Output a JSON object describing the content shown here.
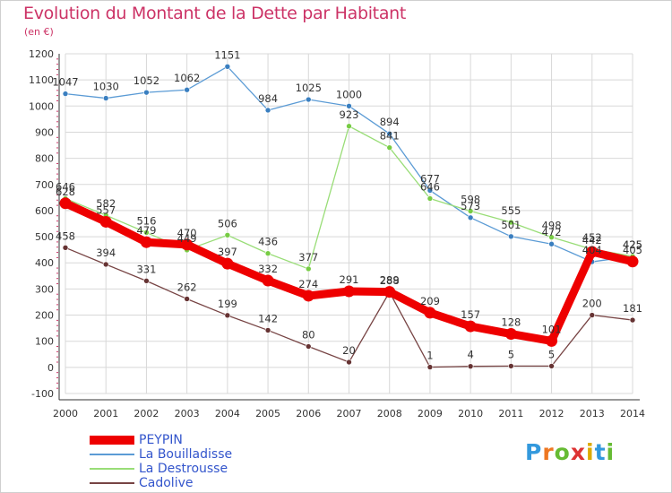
{
  "title": "Evolution du Montant de la Dette par Habitant",
  "subtitle": "(en €)",
  "logo": "Proxiti",
  "colors": {
    "title": "#cc3366",
    "grid": "#d8d8d8",
    "axis": "#333333",
    "legend_text": "#3355cc"
  },
  "chart_data": {
    "type": "line",
    "title": "Evolution du Montant de la Dette par Habitant",
    "ylabel": "(en €)",
    "xlabel": "",
    "x": [
      "2000",
      "2001",
      "2002",
      "2003",
      "2004",
      "2005",
      "2006",
      "2007",
      "2008",
      "2009",
      "2010",
      "2011",
      "2012",
      "2013",
      "2014"
    ],
    "ylim": [
      -100,
      1200
    ],
    "yticks": [
      -100,
      0,
      100,
      200,
      300,
      400,
      500,
      600,
      700,
      800,
      900,
      1000,
      1100,
      1200
    ],
    "grid": true,
    "legend_position": "bottom-left",
    "series": [
      {
        "name": "La Bouilladisse",
        "color": "#5b9bd5",
        "marker": "#3a7fc0",
        "values": [
          1047,
          1030,
          1052,
          1062,
          1151,
          984,
          1025,
          1000,
          894,
          677,
          573,
          501,
          472,
          404,
          425
        ]
      },
      {
        "name": "La Destrousse",
        "color": "#99dd77",
        "marker": "#77cc44",
        "values": [
          646,
          582,
          516,
          449,
          506,
          436,
          377,
          923,
          841,
          646,
          598,
          555,
          498,
          452,
          425
        ]
      },
      {
        "name": "Cadolive",
        "color": "#774444",
        "marker": "#663333",
        "values": [
          458,
          394,
          331,
          262,
          199,
          142,
          80,
          20,
          288,
          1,
          4,
          5,
          5,
          200,
          181
        ]
      },
      {
        "name": "PEYPIN",
        "color": "#ee0000",
        "marker": "#ee0000",
        "values": [
          628,
          557,
          479,
          470,
          397,
          332,
          274,
          291,
          289,
          209,
          157,
          128,
          101,
          442,
          405
        ]
      }
    ]
  }
}
